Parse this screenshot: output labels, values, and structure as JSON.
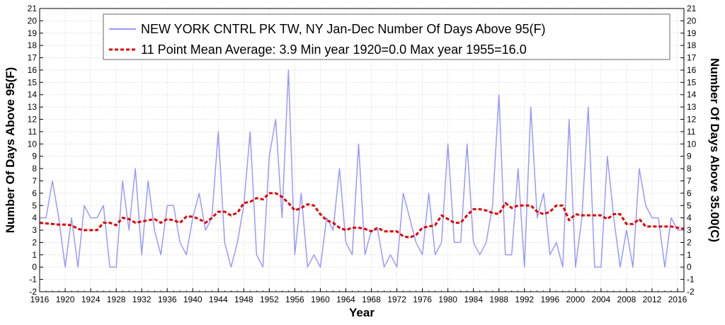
{
  "chart_data": {
    "type": "line",
    "xlabel": "Year",
    "ylabel": "Number Of Days Above 95(F)",
    "ylabel_right": "Number Of Days Above 35.00(C)",
    "xlim": [
      1916,
      2017
    ],
    "ylim": [
      -2,
      21
    ],
    "x_ticks": [
      1916,
      1920,
      1924,
      1928,
      1932,
      1936,
      1940,
      1944,
      1948,
      1952,
      1956,
      1960,
      1964,
      1968,
      1972,
      1976,
      1980,
      1984,
      1988,
      1992,
      1996,
      2000,
      2004,
      2008,
      2012,
      2016
    ],
    "y_ticks": [
      -2,
      -1,
      0,
      1,
      2,
      3,
      4,
      5,
      6,
      7,
      8,
      9,
      10,
      11,
      12,
      13,
      14,
      15,
      16,
      17,
      18,
      19,
      20,
      21
    ],
    "grid": true,
    "legend_position": "top",
    "series": [
      {
        "name": "NEW YORK CNTRL PK TW, NY  Jan-Dec  Number Of Days Above 95(F)",
        "color": "#9999ff",
        "style": "solid",
        "x": [
          1916,
          1917,
          1918,
          1919,
          1920,
          1921,
          1922,
          1923,
          1924,
          1925,
          1926,
          1927,
          1928,
          1929,
          1930,
          1931,
          1932,
          1933,
          1934,
          1935,
          1936,
          1937,
          1938,
          1939,
          1940,
          1941,
          1942,
          1943,
          1944,
          1945,
          1946,
          1947,
          1948,
          1949,
          1950,
          1951,
          1952,
          1953,
          1954,
          1955,
          1956,
          1957,
          1958,
          1959,
          1960,
          1961,
          1962,
          1963,
          1964,
          1965,
          1966,
          1967,
          1968,
          1969,
          1970,
          1971,
          1972,
          1973,
          1974,
          1975,
          1976,
          1977,
          1978,
          1979,
          1980,
          1981,
          1982,
          1983,
          1984,
          1985,
          1986,
          1987,
          1988,
          1989,
          1990,
          1991,
          1992,
          1993,
          1994,
          1995,
          1996,
          1997,
          1998,
          1999,
          2000,
          2001,
          2002,
          2003,
          2004,
          2005,
          2006,
          2007,
          2008,
          2009,
          2010,
          2011,
          2012,
          2013,
          2014,
          2015,
          2016,
          2017
        ],
        "values": [
          4,
          4,
          7,
          4,
          0,
          4,
          0,
          5,
          4,
          4,
          5,
          0,
          0,
          7,
          3,
          8,
          1,
          7,
          3,
          1,
          5,
          5,
          2,
          1,
          4,
          6,
          3,
          4,
          11,
          2,
          0,
          2,
          5,
          11,
          1,
          0,
          9,
          12,
          4,
          16,
          1,
          6,
          0,
          1,
          0,
          4,
          3,
          8,
          2,
          1,
          10,
          1,
          3,
          3,
          0,
          1,
          0,
          6,
          4,
          2,
          1,
          6,
          1,
          2,
          10,
          2,
          2,
          10,
          2,
          1,
          2,
          5,
          14,
          1,
          1,
          8,
          0,
          13,
          4,
          6,
          1,
          2,
          0,
          12,
          0,
          4,
          13,
          0,
          0,
          9,
          4,
          0,
          3,
          0,
          8,
          5,
          4,
          4,
          0,
          4,
          3,
          3
        ]
      },
      {
        "name": "11 Point Mean  Average: 3.9  Min year 1920=0.0  Max year 1955=16.0",
        "color": "#e00000",
        "style": "dashed",
        "x": [
          1916,
          1917,
          1918,
          1919,
          1920,
          1921,
          1922,
          1923,
          1924,
          1925,
          1926,
          1927,
          1928,
          1929,
          1930,
          1931,
          1932,
          1933,
          1934,
          1935,
          1936,
          1937,
          1938,
          1939,
          1940,
          1941,
          1942,
          1943,
          1944,
          1945,
          1946,
          1947,
          1948,
          1949,
          1950,
          1951,
          1952,
          1953,
          1954,
          1955,
          1956,
          1957,
          1958,
          1959,
          1960,
          1961,
          1962,
          1963,
          1964,
          1965,
          1966,
          1967,
          1968,
          1969,
          1970,
          1971,
          1972,
          1973,
          1974,
          1975,
          1976,
          1977,
          1978,
          1979,
          1980,
          1981,
          1982,
          1983,
          1984,
          1985,
          1986,
          1987,
          1988,
          1989,
          1990,
          1991,
          1992,
          1993,
          1994,
          1995,
          1996,
          1997,
          1998,
          1999,
          2000,
          2001,
          2002,
          2003,
          2004,
          2005,
          2006,
          2007,
          2008,
          2009,
          2010,
          2011,
          2012,
          2013,
          2014,
          2015,
          2016,
          2017
        ],
        "values": [
          3.6,
          3.55,
          3.5,
          3.45,
          3.45,
          3.4,
          3.1,
          3.0,
          3.0,
          3.0,
          3.6,
          3.6,
          3.4,
          4.0,
          3.9,
          3.6,
          3.7,
          3.8,
          3.9,
          3.6,
          3.9,
          3.8,
          3.6,
          4.1,
          4.1,
          3.9,
          3.6,
          4.0,
          4.5,
          4.5,
          4.2,
          4.4,
          5.2,
          5.3,
          5.6,
          5.5,
          6.0,
          6.0,
          5.7,
          5.2,
          4.6,
          4.8,
          5.1,
          5.0,
          4.3,
          3.8,
          3.6,
          3.2,
          3.0,
          3.2,
          3.2,
          3.1,
          2.9,
          3.2,
          2.9,
          2.9,
          2.9,
          2.5,
          2.4,
          2.6,
          3.2,
          3.3,
          3.4,
          4.2,
          3.9,
          3.6,
          3.6,
          4.2,
          4.7,
          4.7,
          4.6,
          4.4,
          4.3,
          5.2,
          4.8,
          5.0,
          5.0,
          5.0,
          4.5,
          4.3,
          4.5,
          5.0,
          5.0,
          3.8,
          4.3,
          4.2,
          4.2,
          4.2,
          4.2,
          3.9,
          4.3,
          4.3,
          3.5,
          3.5,
          3.9,
          3.3,
          3.3,
          3.3,
          3.3,
          3.3,
          3.2,
          3.1
        ]
      }
    ]
  }
}
